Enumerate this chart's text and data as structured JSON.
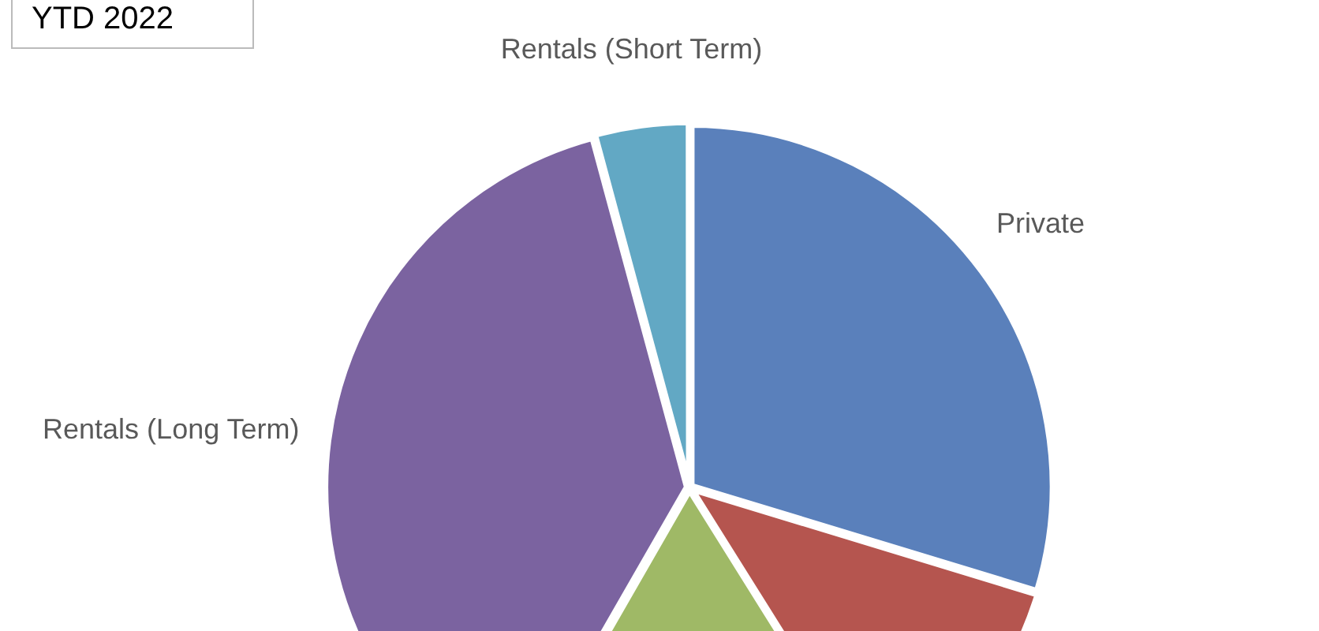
{
  "chart_data": {
    "type": "pie",
    "title": "YTD 2022",
    "categories": [
      "Private",
      null,
      null,
      "Rentals (Long Term)",
      "Rentals (Short Term)"
    ],
    "values": [
      29.7,
      11.4,
      17.2,
      37.5,
      4.2
    ],
    "colors": [
      "#5a80bb",
      "#b5554f",
      "#9fb966",
      "#7b63a0",
      "#62a8c4"
    ],
    "legend": false
  }
}
